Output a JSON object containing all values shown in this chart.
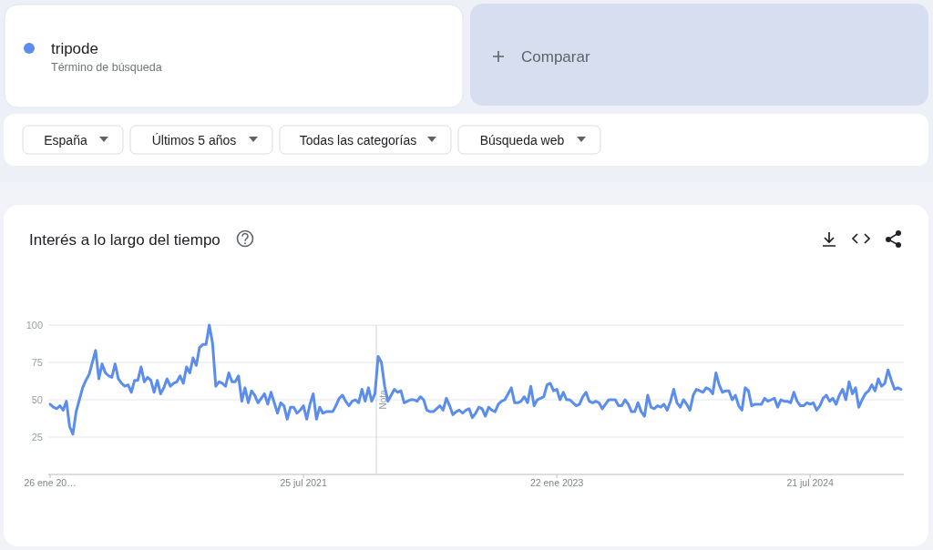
{
  "chart_data": {
    "type": "line",
    "title": "Interés a lo largo del tiempo",
    "annotations": [
      "Término de búsqueda",
      "Comparar",
      "España",
      "Últimos 5 años",
      "Todas las categorías",
      "Búsqueda web"
    ],
    "legend": "top left",
    "grid": "y",
    "line_style": "solid",
    "xlim": [
      "2020-01-22",
      "2025-02-08"
    ],
    "xticks": [
      {
        "value": "2020-01-26",
        "label": "26 ene 20…"
      },
      {
        "value": "2021-07-25",
        "label": "25 jul 2021"
      },
      {
        "value": "2023-01-22",
        "label": "22 ene 2023"
      },
      {
        "value": "2024-07-21",
        "label": "21 jul 2024"
      }
    ],
    "ylim": [
      0,
      100
    ],
    "yticks": [
      25,
      50,
      75,
      100
    ],
    "ref_lines": [
      {
        "axis": "x",
        "value": "2021-12-29",
        "label": "Nota",
        "color": "#dadce0"
      }
    ],
    "x": [
      "2020-01-26",
      "2020-02-02",
      "2020-02-09",
      "2020-02-16",
      "2020-02-23",
      "2020-03-01",
      "2020-03-08",
      "2020-03-15",
      "2020-03-22",
      "2020-03-29",
      "2020-04-05",
      "2020-04-12",
      "2020-04-19",
      "2020-04-26",
      "2020-05-03",
      "2020-05-10",
      "2020-05-17",
      "2020-05-24",
      "2020-05-31",
      "2020-06-07",
      "2020-06-14",
      "2020-06-21",
      "2020-06-28",
      "2020-07-05",
      "2020-07-12",
      "2020-07-19",
      "2020-07-26",
      "2020-08-02",
      "2020-08-09",
      "2020-08-16",
      "2020-08-23",
      "2020-08-30",
      "2020-09-06",
      "2020-09-13",
      "2020-09-20",
      "2020-09-27",
      "2020-10-04",
      "2020-10-11",
      "2020-10-18",
      "2020-10-25",
      "2020-11-01",
      "2020-11-08",
      "2020-11-15",
      "2020-11-22",
      "2020-11-29",
      "2020-12-06",
      "2020-12-13",
      "2020-12-20",
      "2020-12-27",
      "2021-01-03",
      "2021-01-10",
      "2021-01-17",
      "2021-01-24",
      "2021-01-31",
      "2021-02-07",
      "2021-02-14",
      "2021-02-21",
      "2021-02-28",
      "2021-03-07",
      "2021-03-14",
      "2021-03-21",
      "2021-03-28",
      "2021-04-04",
      "2021-04-11",
      "2021-04-18",
      "2021-04-25",
      "2021-05-02",
      "2021-05-09",
      "2021-05-16",
      "2021-05-23",
      "2021-05-30",
      "2021-06-06",
      "2021-06-13",
      "2021-06-20",
      "2021-06-27",
      "2021-07-04",
      "2021-07-11",
      "2021-07-18",
      "2021-07-25",
      "2021-08-01",
      "2021-08-08",
      "2021-08-15",
      "2021-08-22",
      "2021-08-29",
      "2021-09-05",
      "2021-09-12",
      "2021-09-19",
      "2021-09-26",
      "2021-10-03",
      "2021-10-10",
      "2021-10-17",
      "2021-10-24",
      "2021-10-31",
      "2021-11-07",
      "2021-11-14",
      "2021-11-21",
      "2021-11-28",
      "2021-12-05",
      "2021-12-12",
      "2021-12-19",
      "2021-12-26",
      "2022-01-02",
      "2022-01-09",
      "2022-01-16",
      "2022-01-23",
      "2022-01-30",
      "2022-02-06",
      "2022-02-13",
      "2022-02-20",
      "2022-02-27",
      "2022-03-06",
      "2022-03-13",
      "2022-03-20",
      "2022-03-27",
      "2022-04-03",
      "2022-04-10",
      "2022-04-17",
      "2022-04-24",
      "2022-05-01",
      "2022-05-08",
      "2022-05-15",
      "2022-05-22",
      "2022-05-29",
      "2022-06-05",
      "2022-06-12",
      "2022-06-19",
      "2022-06-26",
      "2022-07-03",
      "2022-07-10",
      "2022-07-17",
      "2022-07-24",
      "2022-07-31",
      "2022-08-07",
      "2022-08-14",
      "2022-08-21",
      "2022-08-28",
      "2022-09-04",
      "2022-09-11",
      "2022-09-18",
      "2022-09-25",
      "2022-10-02",
      "2022-10-09",
      "2022-10-16",
      "2022-10-23",
      "2022-10-30",
      "2022-11-06",
      "2022-11-13",
      "2022-11-20",
      "2022-11-27",
      "2022-12-04",
      "2022-12-11",
      "2022-12-18",
      "2022-12-25",
      "2023-01-01",
      "2023-01-08",
      "2023-01-15",
      "2023-01-22",
      "2023-01-29",
      "2023-02-05",
      "2023-02-12",
      "2023-02-19",
      "2023-02-26",
      "2023-03-05",
      "2023-03-12",
      "2023-03-19",
      "2023-03-26",
      "2023-04-02",
      "2023-04-09",
      "2023-04-16",
      "2023-04-23",
      "2023-04-30",
      "2023-05-07",
      "2023-05-14",
      "2023-05-21",
      "2023-05-28",
      "2023-06-04",
      "2023-06-11",
      "2023-06-18",
      "2023-06-25",
      "2023-07-02",
      "2023-07-09",
      "2023-07-16",
      "2023-07-23",
      "2023-07-30",
      "2023-08-06",
      "2023-08-13",
      "2023-08-20",
      "2023-08-27",
      "2023-09-03",
      "2023-09-10",
      "2023-09-17",
      "2023-09-24",
      "2023-10-01",
      "2023-10-08",
      "2023-10-15",
      "2023-10-22",
      "2023-10-29",
      "2023-11-05",
      "2023-11-12",
      "2023-11-19",
      "2023-11-26",
      "2023-12-03",
      "2023-12-10",
      "2023-12-17",
      "2023-12-24",
      "2023-12-31",
      "2024-01-07",
      "2024-01-14",
      "2024-01-21",
      "2024-01-28",
      "2024-02-04",
      "2024-02-11",
      "2024-02-18",
      "2024-02-25",
      "2024-03-03",
      "2024-03-10",
      "2024-03-17",
      "2024-03-24",
      "2024-03-31",
      "2024-04-07",
      "2024-04-14",
      "2024-04-21",
      "2024-04-28",
      "2024-05-05",
      "2024-05-12",
      "2024-05-19",
      "2024-05-26",
      "2024-06-02",
      "2024-06-09",
      "2024-06-16",
      "2024-06-23",
      "2024-06-30",
      "2024-07-07",
      "2024-07-14",
      "2024-07-21",
      "2024-07-28",
      "2024-08-04",
      "2024-08-11",
      "2024-08-18",
      "2024-08-25",
      "2024-09-01",
      "2024-09-08",
      "2024-09-15",
      "2024-09-22",
      "2024-09-29",
      "2024-10-06",
      "2024-10-13",
      "2024-10-20",
      "2024-10-27",
      "2024-11-03",
      "2024-11-10",
      "2024-11-17",
      "2024-11-24",
      "2024-12-01",
      "2024-12-08",
      "2024-12-15",
      "2024-12-22",
      "2024-12-29",
      "2025-01-05",
      "2025-01-12",
      "2025-01-19",
      "2025-01-26",
      "2025-02-02"
    ],
    "series": [
      {
        "name": "tripode",
        "color": "#5b8def",
        "values": [
          47,
          45,
          44,
          46,
          43,
          49,
          32,
          27,
          42,
          50,
          58,
          63,
          67,
          75,
          83,
          64,
          74,
          68,
          66,
          65,
          74,
          64,
          61,
          59,
          60,
          55,
          63,
          63,
          72,
          62,
          65,
          63,
          55,
          63,
          54,
          58,
          64,
          59,
          61,
          62,
          66,
          61,
          72,
          68,
          78,
          73,
          85,
          87,
          87,
          100,
          88,
          59,
          62,
          61,
          59,
          68,
          62,
          62,
          66,
          49,
          58,
          48,
          56,
          53,
          48,
          51,
          54,
          47,
          55,
          48,
          41,
          48,
          46,
          37,
          45,
          45,
          41,
          43,
          46,
          37,
          47,
          54,
          37,
          45,
          41,
          42,
          42,
          42,
          46,
          51,
          53,
          49,
          46,
          49,
          50,
          48,
          57,
          49,
          58,
          49,
          54,
          79,
          75,
          59,
          49,
          53,
          57,
          55,
          56,
          48,
          49,
          50,
          50,
          49,
          52,
          50,
          43,
          42,
          42,
          44,
          46,
          43,
          51,
          46,
          40,
          42,
          43,
          41,
          43,
          44,
          38,
          41,
          45,
          44,
          39,
          45,
          43,
          42,
          47,
          49,
          50,
          54,
          58,
          48,
          48,
          49,
          52,
          48,
          59,
          46,
          50,
          51,
          52,
          60,
          61,
          56,
          57,
          50,
          55,
          50,
          50,
          48,
          46,
          47,
          52,
          55,
          49,
          48,
          49,
          48,
          44,
          47,
          50,
          50,
          50,
          46,
          46,
          50,
          47,
          42,
          42,
          48,
          42,
          39,
          53,
          45,
          44,
          46,
          45,
          47,
          43,
          49,
          57,
          48,
          45,
          50,
          47,
          43,
          53,
          57,
          56,
          55,
          58,
          57,
          54,
          68,
          60,
          55,
          56,
          56,
          50,
          53,
          46,
          43,
          58,
          56,
          46,
          47,
          47,
          47,
          51,
          49,
          50,
          51,
          45,
          50,
          49,
          49,
          48,
          55,
          49,
          46,
          46,
          48,
          47,
          48,
          43,
          46,
          51,
          53,
          49,
          51,
          47,
          53,
          57,
          50,
          62,
          54,
          58,
          45,
          50,
          54,
          56,
          60,
          56,
          64,
          59,
          61,
          70,
          63,
          57,
          58,
          57
        ]
      }
    ]
  }
}
